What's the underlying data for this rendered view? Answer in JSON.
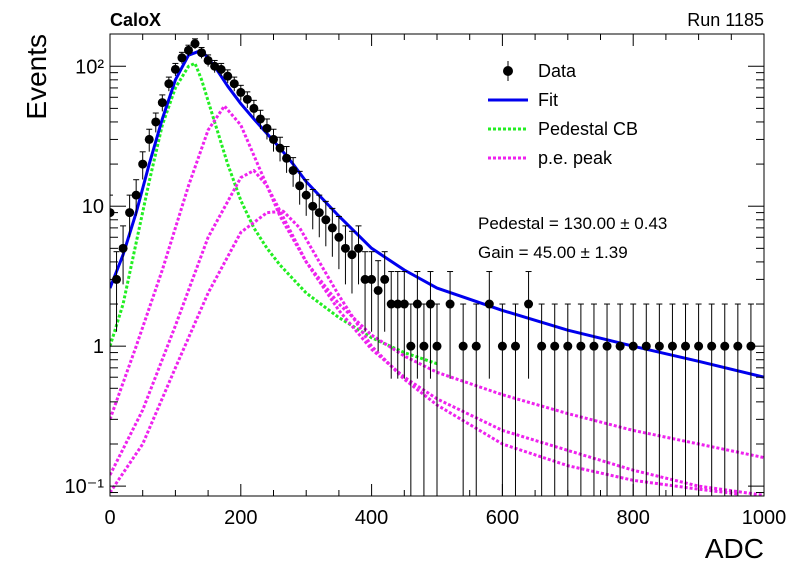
{
  "header": {
    "experiment": "CaloX",
    "run": "Run 1185"
  },
  "colors": {
    "data": "#000000",
    "fit": "#0000ee",
    "pedestal": "#22ee22",
    "pe": "#ee22ee"
  },
  "chart_data": {
    "type": "scatter",
    "xlabel": "ADC",
    "ylabel": "Events",
    "xlim": [
      0,
      1000
    ],
    "ylim": [
      0.085,
      170
    ],
    "yscale": "log",
    "x_ticks": [
      0,
      200,
      400,
      600,
      800,
      1000
    ],
    "x_tick_labels": [
      "0",
      "200",
      "400",
      "600",
      "800",
      "1000"
    ],
    "y_ticks": [
      0.1,
      1,
      10,
      100
    ],
    "y_tick_labels": [
      "10⁻¹",
      "1",
      "10",
      "10²"
    ],
    "legend": {
      "placement": "top-right",
      "entries": [
        {
          "label": "Data",
          "style": "points"
        },
        {
          "label": "Fit",
          "style": "line-solid"
        },
        {
          "label": "Pedestal CB",
          "style": "line-dotted"
        },
        {
          "label": "p.e. peak",
          "style": "line-dotted"
        }
      ]
    },
    "stats": [
      "Pedestal = 130.00 ± 0.43",
      "Gain = 45.00 ± 1.39"
    ],
    "series": [
      {
        "label_ref": "Data",
        "kind": "points",
        "x": [
          0,
          10,
          20,
          30,
          40,
          50,
          60,
          70,
          80,
          90,
          100,
          110,
          120,
          130,
          140,
          150,
          160,
          170,
          180,
          190,
          200,
          210,
          220,
          230,
          240,
          250,
          260,
          270,
          280,
          290,
          300,
          310,
          320,
          330,
          340,
          350,
          360,
          370,
          380,
          390,
          400,
          410,
          420,
          430,
          440,
          450,
          460,
          470,
          480,
          490,
          500,
          520,
          540,
          560,
          580,
          600,
          620,
          640,
          660,
          680,
          700,
          720,
          740,
          760,
          780,
          800,
          820,
          840,
          860,
          880,
          900,
          920,
          940,
          960,
          980
        ],
        "y": [
          9,
          3,
          5,
          9,
          12,
          20,
          30,
          40,
          55,
          75,
          95,
          115,
          130,
          145,
          125,
          110,
          100,
          95,
          85,
          75,
          65,
          58,
          50,
          42,
          36,
          30,
          26,
          22,
          18,
          14,
          12,
          10,
          9,
          8,
          7,
          6,
          5,
          4.5,
          5,
          3,
          3,
          2.5,
          3,
          2,
          2,
          2,
          1,
          2,
          1,
          2,
          1,
          2,
          1,
          1,
          2,
          1,
          1,
          2,
          1,
          1,
          1,
          1,
          1,
          1,
          1,
          1,
          1,
          1,
          1,
          1,
          1,
          1,
          1,
          1,
          1
        ]
      },
      {
        "label_ref": "Fit",
        "kind": "line",
        "x": [
          0,
          20,
          40,
          60,
          80,
          100,
          120,
          140,
          160,
          180,
          200,
          220,
          240,
          260,
          280,
          300,
          350,
          400,
          450,
          500,
          600,
          700,
          800,
          900,
          1000
        ],
        "y": [
          2.6,
          4.5,
          9,
          20,
          42,
          80,
          120,
          130,
          100,
          72,
          54,
          42,
          33,
          26,
          20,
          15,
          8.5,
          5,
          3.5,
          2.6,
          1.8,
          1.3,
          1.0,
          0.78,
          0.6
        ]
      },
      {
        "label_ref": "Pedestal CB",
        "kind": "line",
        "x": [
          0,
          20,
          40,
          60,
          80,
          100,
          120,
          130,
          140,
          160,
          180,
          200,
          220,
          240,
          260,
          300,
          350,
          400,
          450,
          500
        ],
        "y": [
          1.0,
          2.0,
          5.5,
          15,
          38,
          70,
          100,
          105,
          80,
          40,
          20,
          11,
          7,
          5,
          3.8,
          2.4,
          1.6,
          1.15,
          0.9,
          0.75
        ]
      },
      {
        "label_ref": "p.e. peak",
        "kind": "line",
        "x": [
          0,
          40,
          80,
          120,
          150,
          175,
          200,
          230,
          260,
          300,
          350,
          400,
          450,
          500,
          600,
          700,
          800,
          900,
          1000
        ],
        "y": [
          0.3,
          1.0,
          3.5,
          14,
          35,
          52,
          38,
          18,
          8.5,
          4.0,
          2.0,
          1.2,
          0.85,
          0.65,
          0.45,
          0.33,
          0.25,
          0.2,
          0.16
        ]
      },
      {
        "label_ref": "p.e. peak",
        "kind": "line",
        "x": [
          0,
          50,
          100,
          150,
          200,
          220,
          240,
          270,
          300,
          350,
          400,
          450,
          500,
          600,
          700,
          800,
          900,
          1000
        ],
        "y": [
          0.12,
          0.35,
          1.4,
          6,
          16,
          18,
          14,
          7.5,
          4.0,
          1.8,
          0.95,
          0.6,
          0.42,
          0.25,
          0.18,
          0.13,
          0.1,
          0.086
        ]
      },
      {
        "label_ref": "p.e. peak",
        "kind": "line",
        "x": [
          0,
          50,
          100,
          150,
          200,
          240,
          265,
          290,
          320,
          350,
          400,
          450,
          500,
          600,
          700,
          800,
          900,
          960
        ],
        "y": [
          0.09,
          0.2,
          0.7,
          2.4,
          6.5,
          9,
          9.2,
          7,
          4,
          2.3,
          1.0,
          0.58,
          0.38,
          0.2,
          0.14,
          0.11,
          0.095,
          0.088
        ]
      }
    ]
  }
}
